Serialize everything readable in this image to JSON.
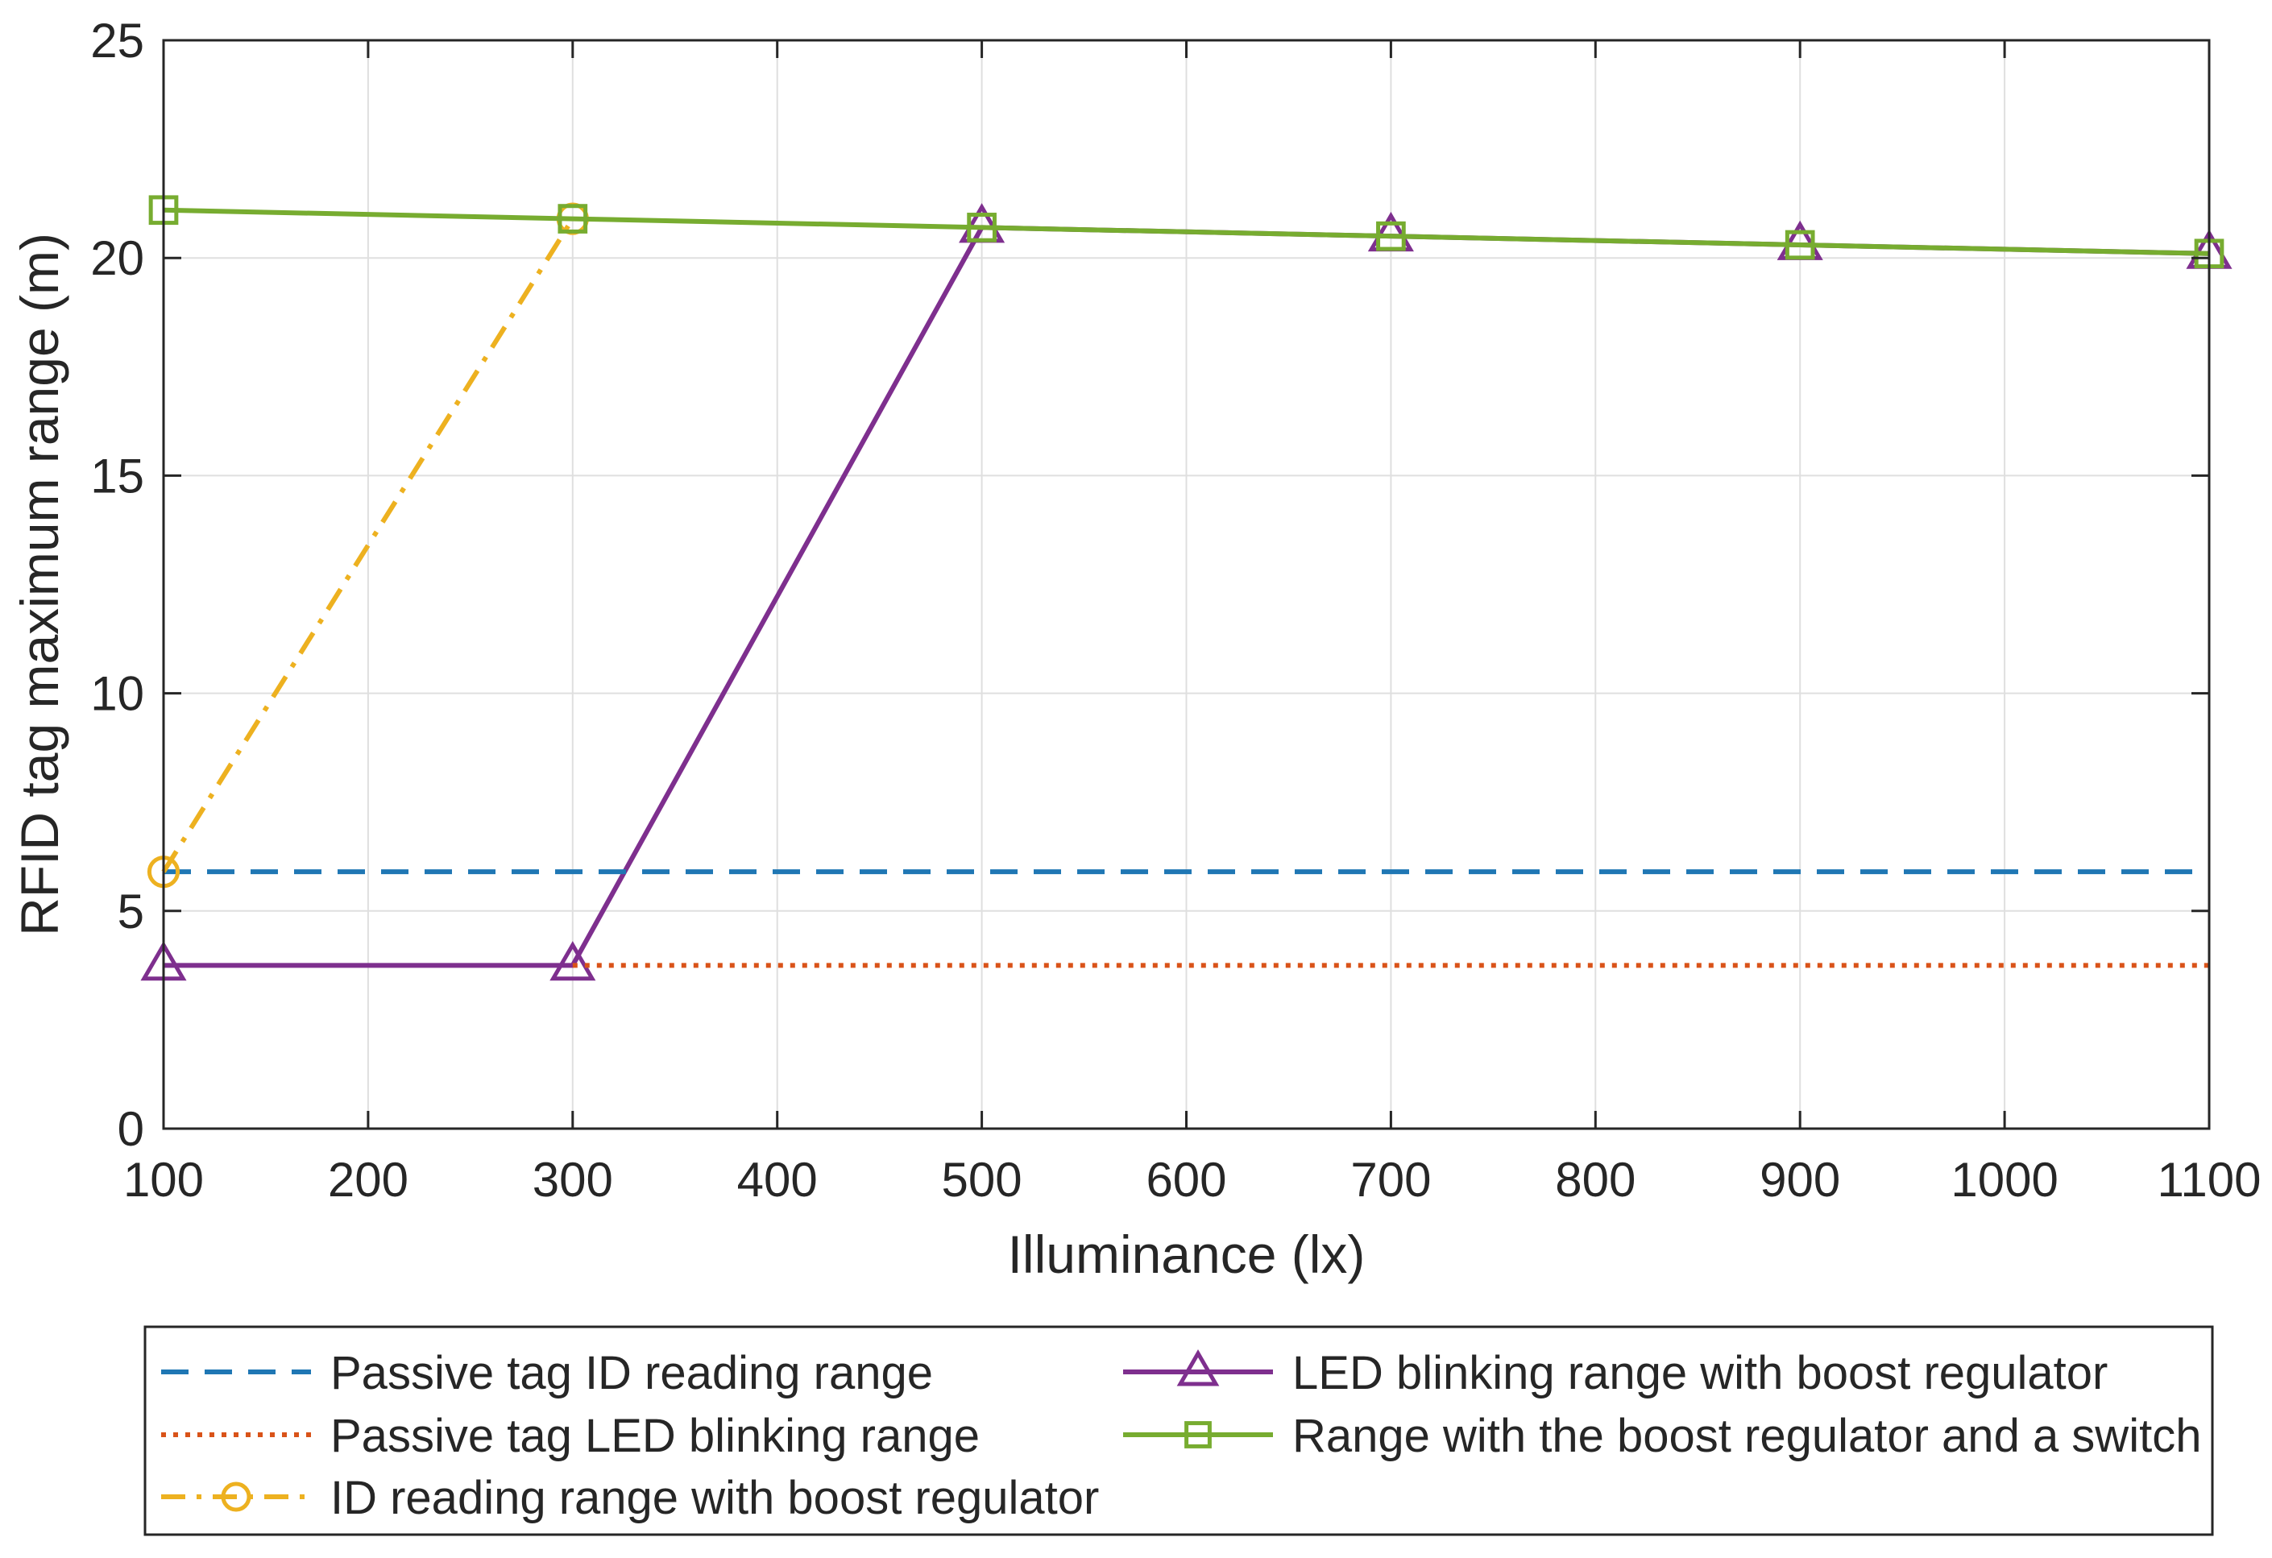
{
  "colors": {
    "axis": "#262626",
    "grid": "#dfdfdf",
    "background": "#ffffff"
  },
  "chart_data": {
    "type": "line",
    "title": "",
    "xlabel": "Illuminance (lx)",
    "ylabel": "RFID tag maximum range (m)",
    "xlim": [
      100,
      1100
    ],
    "ylim": [
      0,
      25
    ],
    "xticks": [
      100,
      200,
      300,
      400,
      500,
      600,
      700,
      800,
      900,
      1000,
      1100
    ],
    "yticks": [
      0,
      5,
      10,
      15,
      20,
      25
    ],
    "xtick_labels": [
      "100",
      "200",
      "300",
      "400",
      "500",
      "600",
      "700",
      "800",
      "900",
      "1000",
      "1100"
    ],
    "ytick_labels": [
      "0",
      "5",
      "10",
      "15",
      "20",
      "25"
    ],
    "grid": true,
    "legend_position": "bottom-outside",
    "series": [
      {
        "name": "Passive tag ID reading range",
        "color": "#1f77b4",
        "style": "dashed",
        "marker": "none",
        "x": [
          100,
          1100
        ],
        "y": [
          5.9,
          5.9
        ]
      },
      {
        "name": "Passive tag LED blinking range",
        "color": "#d95319",
        "style": "dotted",
        "marker": "none",
        "x": [
          300,
          1100
        ],
        "y": [
          3.75,
          3.75
        ]
      },
      {
        "name": "ID reading range with boost regulator",
        "color": "#edb120",
        "style": "dashdot",
        "marker": "circle",
        "x": [
          100,
          300
        ],
        "y": [
          5.9,
          20.9
        ]
      },
      {
        "name": "LED blinking range with boost regulator",
        "color": "#7e2f8e",
        "style": "solid",
        "marker": "triangle",
        "x": [
          100,
          300,
          500,
          700,
          900,
          1100
        ],
        "y": [
          3.75,
          3.75,
          20.7,
          20.5,
          20.3,
          20.1
        ]
      },
      {
        "name": "Range with the boost regulator and a switch",
        "color": "#77ac30",
        "style": "solid",
        "marker": "square",
        "x": [
          100,
          300,
          500,
          700,
          900,
          1100
        ],
        "y": [
          21.1,
          20.9,
          20.7,
          20.5,
          20.3,
          20.1
        ]
      }
    ]
  }
}
